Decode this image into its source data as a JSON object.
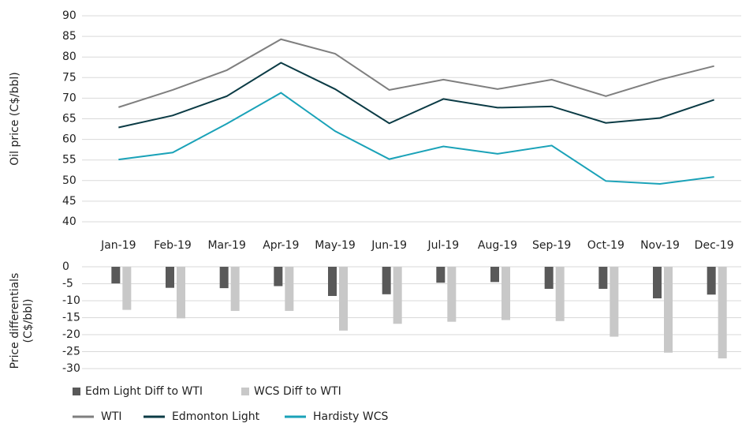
{
  "chart_data": [
    {
      "type": "line",
      "ylabel": "Oil price (C$/bbl)",
      "categories": [
        "Jan-19",
        "Feb-19",
        "Mar-19",
        "Apr-19",
        "May-19",
        "Jun-19",
        "Jul-19",
        "Aug-19",
        "Sep-19",
        "Oct-19",
        "Nov-19",
        "Dec-19"
      ],
      "ylim": [
        40,
        90
      ],
      "yticks": [
        40,
        45,
        50,
        55,
        60,
        65,
        70,
        75,
        80,
        85,
        90
      ],
      "grid": true,
      "series": [
        {
          "name": "WTI",
          "color": "#7f7f7f",
          "values": [
            67.8,
            72,
            76.8,
            84.3,
            80.8,
            72,
            74.5,
            72.2,
            74.5,
            70.5,
            74.5,
            77.8
          ]
        },
        {
          "name": "Edmonton Light",
          "color": "#0b3b45",
          "values": [
            62.9,
            65.8,
            70.5,
            78.6,
            72.2,
            63.9,
            69.8,
            67.7,
            68,
            64,
            65.2,
            69.6
          ]
        },
        {
          "name": "Hardisty WCS",
          "color": "#1aa2b8",
          "values": [
            55.1,
            56.8,
            63.8,
            71.3,
            62,
            55.2,
            58.3,
            56.5,
            58.5,
            49.9,
            49.2,
            50.9
          ]
        }
      ]
    },
    {
      "type": "bar",
      "ylabel": [
        "Price differentials",
        "(C$/bbl)"
      ],
      "ylim": [
        -30,
        0
      ],
      "yticks": [
        0,
        -5,
        -10,
        -15,
        -20,
        -25,
        -30
      ],
      "grid": true,
      "series": [
        {
          "name": "Edm Light Diff to WTI",
          "color": "#595959",
          "values": [
            -4.9,
            -6.2,
            -6.3,
            -5.7,
            -8.6,
            -8.1,
            -4.7,
            -4.5,
            -6.5,
            -6.5,
            -9.3,
            -8.2
          ]
        },
        {
          "name": "WCS Diff to WTI",
          "color": "#c8c8c8",
          "values": [
            -12.7,
            -15.2,
            -13,
            -13,
            -18.8,
            -16.8,
            -16.2,
            -15.7,
            -16,
            -20.6,
            -25.3,
            -27
          ]
        }
      ]
    }
  ]
}
